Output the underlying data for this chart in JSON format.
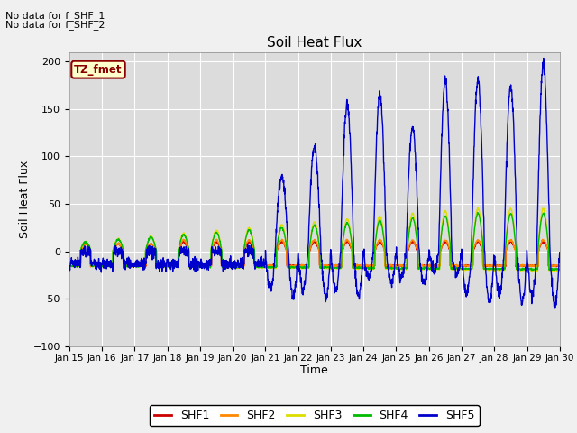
{
  "title": "Soil Heat Flux",
  "xlabel": "Time",
  "ylabel": "Soil Heat Flux",
  "ylim": [
    -100,
    210
  ],
  "yticks": [
    -100,
    -50,
    0,
    50,
    100,
    150,
    200
  ],
  "xlim": [
    0,
    15
  ],
  "background_color": "#dcdcdc",
  "fig_bg": "#f0f0f0",
  "no_data_text": [
    "No data for f_SHF_1",
    "No data for f_SHF_2"
  ],
  "legend_labels": [
    "SHF1",
    "SHF2",
    "SHF3",
    "SHF4",
    "SHF5"
  ],
  "legend_colors": [
    "#cc0000",
    "#ff8800",
    "#dddd00",
    "#00bb00",
    "#0000cc"
  ],
  "tz_box_text": "TZ_fmet",
  "tz_box_bg": "#ffffcc",
  "tz_box_border": "#8b0000",
  "xticklabels": [
    "Jan 15",
    "Jan 16",
    "Jan 17",
    "Jan 18",
    "Jan 19",
    "Jan 20",
    "Jan 21",
    "Jan 22",
    "Jan 23",
    "Jan 24",
    "Jan 25",
    "Jan 26",
    "Jan 27",
    "Jan 28",
    "Jan 29",
    "Jan 30"
  ],
  "grid_color": "#ffffff",
  "line_width": 1.0
}
